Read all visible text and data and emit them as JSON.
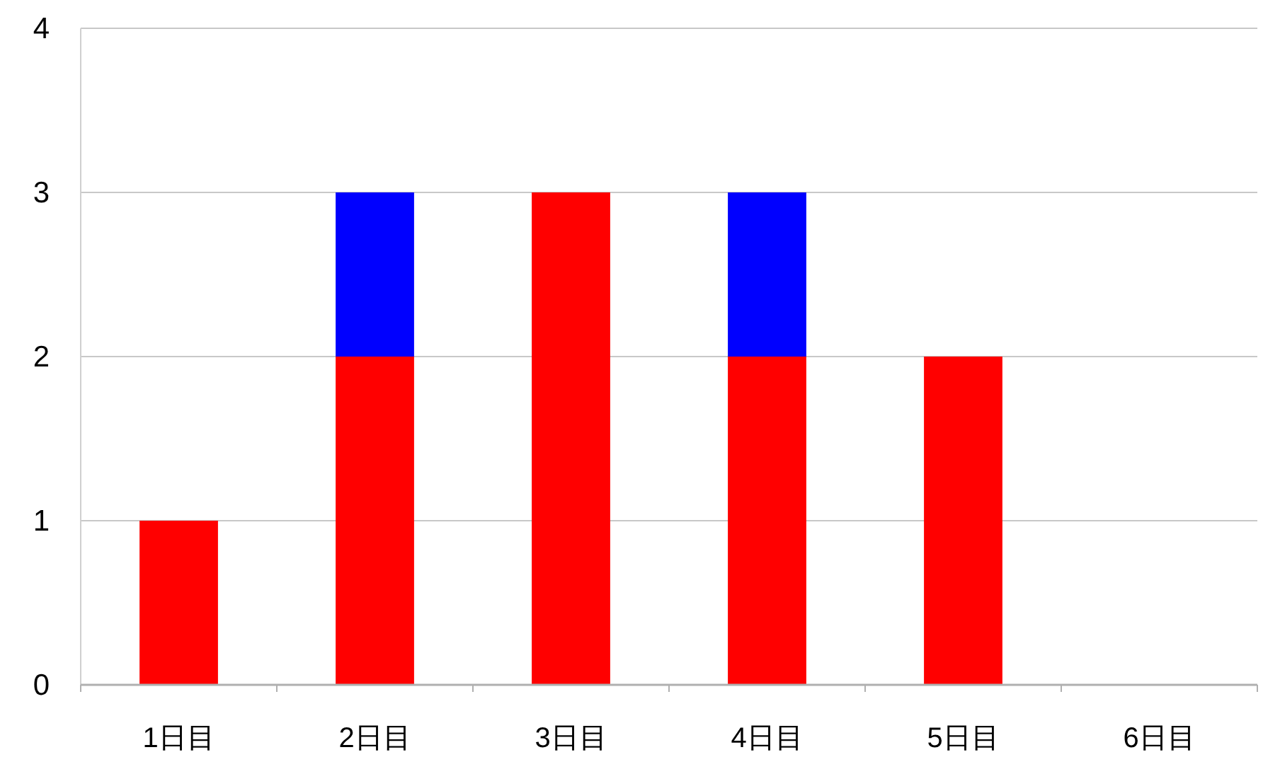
{
  "chart_data": {
    "type": "bar",
    "stacked": true,
    "categories": [
      "1日目",
      "2日目",
      "3日目",
      "4日目",
      "5日目",
      "6日目"
    ],
    "series": [
      {
        "color": "#ff0000",
        "values": [
          1,
          2,
          3,
          2,
          2,
          0
        ]
      },
      {
        "color": "#0000ff",
        "values": [
          0,
          1,
          0,
          1,
          0,
          0
        ]
      }
    ],
    "ylim": [
      0,
      4
    ],
    "yticks": [
      0,
      1,
      2,
      3,
      4
    ],
    "grid": "y"
  }
}
